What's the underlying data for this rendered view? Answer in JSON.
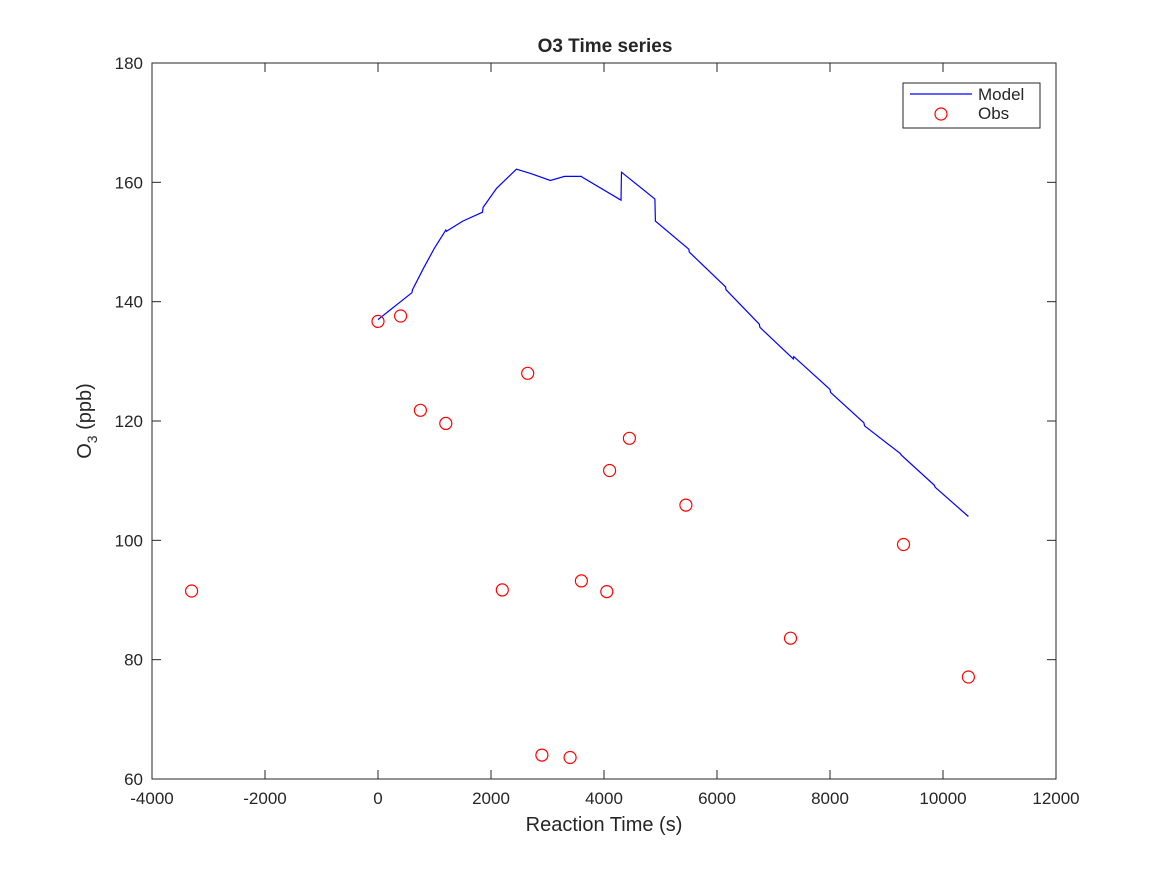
{
  "chart_data": {
    "type": "line",
    "title": "O3 Time series",
    "xlabel": "Reaction Time (s)",
    "ylabel_main": "O",
    "ylabel_sub": "3",
    "ylabel_unit": " (ppb)",
    "xlim": [
      -4000,
      12000
    ],
    "ylim": [
      60,
      180
    ],
    "xticks": [
      -4000,
      -2000,
      0,
      2000,
      4000,
      6000,
      8000,
      10000,
      12000
    ],
    "yticks": [
      60,
      80,
      100,
      120,
      140,
      160,
      180
    ],
    "grid": false,
    "legend_position": "top-right",
    "legend": [
      "Model",
      "Obs"
    ],
    "colors": {
      "model": "#0000ff",
      "obs": "#ff0000",
      "axis": "#262626"
    },
    "series": [
      {
        "name": "Model",
        "kind": "line",
        "x": [
          0,
          200,
          400,
          600,
          610,
          800,
          1000,
          1200,
          1210,
          1500,
          1850,
          1860,
          2100,
          2450,
          2700,
          3050,
          3300,
          3600,
          3610,
          4300,
          4310,
          4900,
          4910,
          5500,
          5510,
          6150,
          6160,
          6750,
          6760,
          7350,
          7360,
          8000,
          8010,
          8600,
          8610,
          9250,
          9260,
          9850,
          9860,
          10450
        ],
        "y": [
          137,
          138.5,
          140,
          141.5,
          142,
          145.5,
          149,
          152,
          151.8,
          153.5,
          155,
          155.8,
          159,
          162.2,
          161.5,
          160.3,
          161,
          161,
          160.9,
          157,
          161.7,
          157.2,
          153.5,
          148.8,
          148.3,
          142.5,
          142,
          136.2,
          135.7,
          130.4,
          130.8,
          125.3,
          124.8,
          119.7,
          119.2,
          114.5,
          114.3,
          109.2,
          108.9,
          104
        ]
      },
      {
        "name": "Obs",
        "kind": "scatter",
        "x": [
          -3300,
          0,
          400,
          750,
          1200,
          2200,
          2650,
          2900,
          3400,
          3600,
          4050,
          4100,
          4450,
          5450,
          7300,
          9300,
          10450
        ],
        "y": [
          91.5,
          136.7,
          137.6,
          121.8,
          119.6,
          91.7,
          128,
          64,
          63.6,
          93.2,
          91.4,
          111.7,
          117.1,
          105.9,
          83.6,
          99.3,
          77.1
        ]
      }
    ]
  }
}
